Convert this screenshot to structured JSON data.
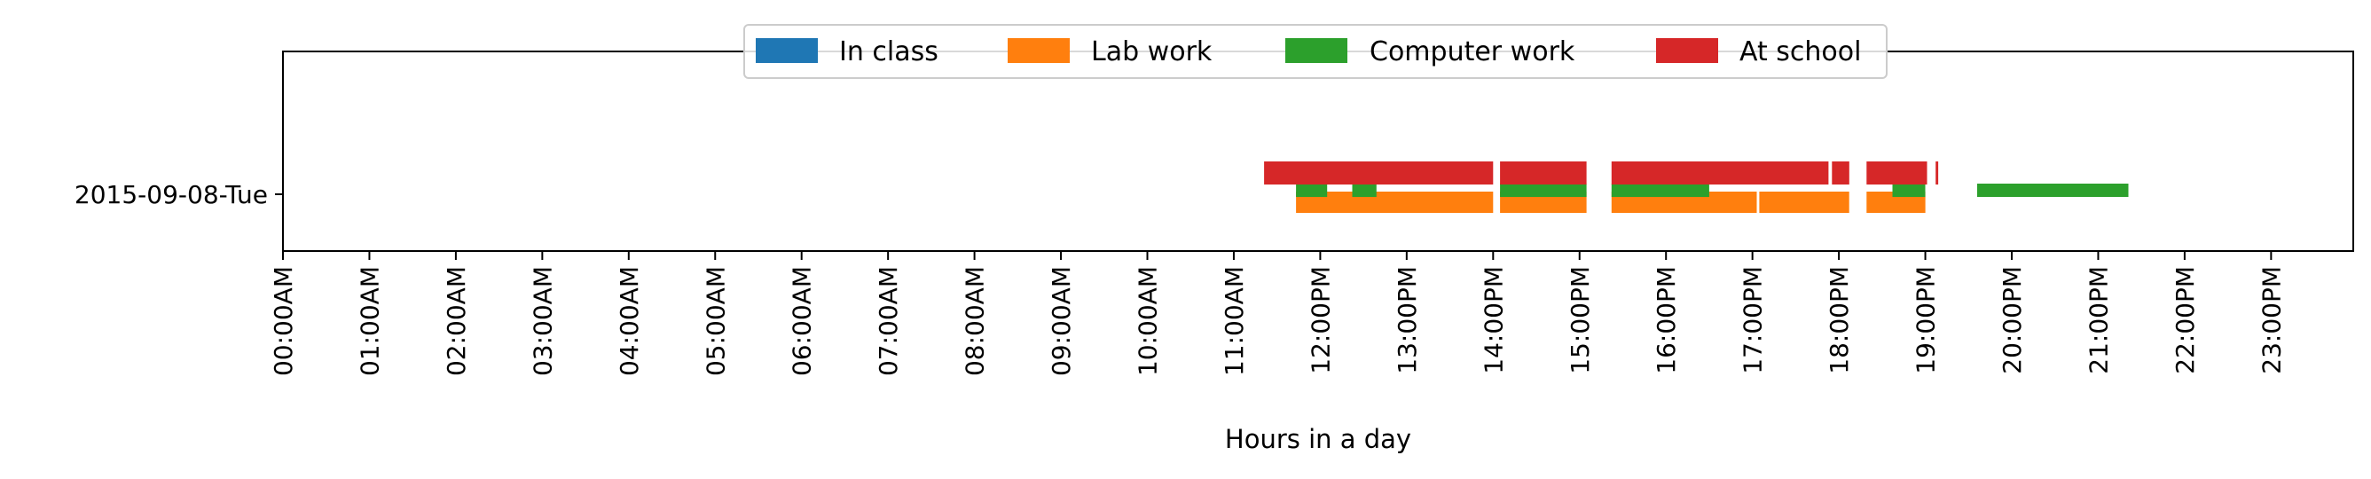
{
  "chart_data": {
    "type": "gantt",
    "xlabel": "Hours in a day",
    "x_tick_labels": [
      "00:00AM",
      "01:00AM",
      "02:00AM",
      "03:00AM",
      "04:00AM",
      "05:00AM",
      "06:00AM",
      "07:00AM",
      "08:00AM",
      "09:00AM",
      "10:00AM",
      "11:00AM",
      "12:00PM",
      "13:00PM",
      "14:00PM",
      "15:00PM",
      "16:00PM",
      "17:00PM",
      "18:00PM",
      "19:00PM",
      "20:00PM",
      "21:00PM",
      "22:00PM",
      "23:00PM"
    ],
    "xlim": [
      0,
      24
    ],
    "y_categories": [
      "2015-09-08-Tue"
    ],
    "legend_position": "top-center",
    "grid": false,
    "series": [
      {
        "name": "In class",
        "color": "#1f77b4",
        "intervals": []
      },
      {
        "name": "Lab work",
        "color": "#ff7f0e",
        "intervals": [
          [
            11.72,
            14.0
          ],
          [
            14.08,
            15.08
          ],
          [
            15.37,
            17.05
          ],
          [
            17.08,
            18.12
          ],
          [
            18.32,
            19.0
          ]
        ]
      },
      {
        "name": "Computer work",
        "color": "#2ca02c",
        "intervals": [
          [
            11.72,
            12.08
          ],
          [
            12.37,
            12.65
          ],
          [
            14.08,
            15.08
          ],
          [
            15.37,
            16.5
          ],
          [
            18.62,
            19.0
          ],
          [
            19.6,
            21.35
          ]
        ]
      },
      {
        "name": "At school",
        "color": "#d62728",
        "intervals": [
          [
            11.35,
            14.0
          ],
          [
            14.08,
            15.08
          ],
          [
            15.37,
            17.88
          ],
          [
            17.92,
            18.12
          ],
          [
            18.32,
            19.02
          ],
          [
            19.12,
            19.15
          ]
        ]
      }
    ]
  }
}
